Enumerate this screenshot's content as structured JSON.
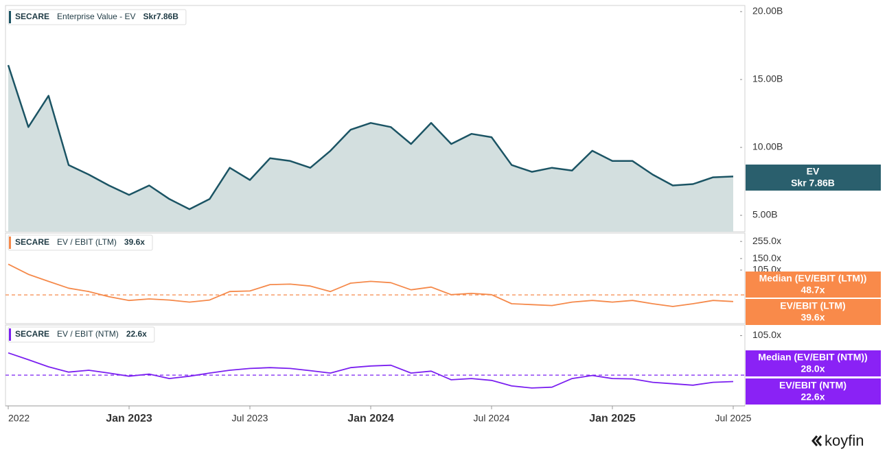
{
  "chart_data": {
    "type": "line",
    "x": [
      "2022-07",
      "2022-08",
      "2022-09",
      "2022-10",
      "2022-11",
      "2022-12",
      "2023-01",
      "2023-02",
      "2023-03",
      "2023-04",
      "2023-05",
      "2023-06",
      "2023-07",
      "2023-08",
      "2023-09",
      "2023-10",
      "2023-11",
      "2023-12",
      "2024-01",
      "2024-02",
      "2024-03",
      "2024-04",
      "2024-05",
      "2024-06",
      "2024-07",
      "2024-08",
      "2024-09",
      "2024-10",
      "2024-11",
      "2024-12",
      "2025-01",
      "2025-02",
      "2025-03",
      "2025-04",
      "2025-05",
      "2025-06",
      "2025-07"
    ],
    "xlim": [
      "2022-07",
      "2025-07"
    ],
    "xticks": [
      {
        "value": "2022-07",
        "label": "2022"
      },
      {
        "value": "2023-01",
        "label": "Jan 2023"
      },
      {
        "value": "2023-07",
        "label": "Jul 2023"
      },
      {
        "value": "2024-01",
        "label": "Jan 2024"
      },
      {
        "value": "2024-07",
        "label": "Jul 2024"
      },
      {
        "value": "2025-01",
        "label": "Jan 2025"
      },
      {
        "value": "2025-07",
        "label": "Jul 2025"
      }
    ],
    "panels": [
      {
        "type": "area",
        "ticker": "SECARE",
        "name": "Enterprise Value - EV",
        "legend_value": "Skr7.86B",
        "color": "#1b5464",
        "fill": "#d3dfdf",
        "badge_color": "#2a5f6d",
        "values": [
          16.06,
          11.5,
          13.8,
          8.7,
          8.0,
          7.2,
          6.5,
          7.2,
          6.2,
          5.45,
          6.2,
          8.5,
          7.6,
          9.2,
          9.0,
          8.5,
          9.75,
          11.3,
          11.8,
          11.5,
          10.25,
          11.8,
          10.25,
          11.0,
          10.75,
          8.7,
          8.2,
          8.5,
          8.3,
          9.75,
          9.0,
          9.0,
          8.0,
          7.2,
          7.3,
          7.8,
          7.86
        ],
        "ylim": [
          3.79,
          20.45
        ],
        "yticks": [
          {
            "value": 5,
            "label": "5.00B"
          },
          {
            "value": 10,
            "label": "10.00B"
          },
          {
            "value": 15,
            "label": "15.00B"
          },
          {
            "value": 20,
            "label": "20.00B"
          }
        ],
        "badges": [
          {
            "title": "EV",
            "label": "Skr 7.86B"
          }
        ]
      },
      {
        "type": "line",
        "ticker": "SECARE",
        "name": "EV / EBIT (LTM)",
        "legend_value": "39.6x",
        "color": "#f5894a",
        "badge_color": "#f98a4a",
        "log_scale": true,
        "median": 48.7,
        "values": [
          126,
          92,
          74,
          60,
          54,
          46,
          41,
          43,
          41.5,
          39,
          41.5,
          54,
          55,
          67,
          68,
          64,
          54,
          70,
          74,
          71,
          57,
          62,
          49,
          51,
          49,
          37,
          36,
          35,
          39,
          41,
          39,
          41,
          37,
          34,
          37,
          41,
          39.6
        ],
        "ylim": [
          20,
          330
        ],
        "yticks": [
          {
            "value": 105,
            "label": "105.0x"
          },
          {
            "value": 150,
            "label": "150.0x"
          },
          {
            "value": 255,
            "label": "255.0x"
          }
        ],
        "badges": [
          {
            "title": "Median (EV/EBIT (LTM))",
            "label": "48.7x"
          },
          {
            "title": "EV/EBIT (LTM)",
            "label": "39.6x"
          }
        ]
      },
      {
        "type": "line",
        "ticker": "SECARE",
        "name": "EV / EBIT (NTM)",
        "legend_value": "22.6x",
        "color": "#7a1ff0",
        "badge_color": "#8a22f5",
        "log_scale": true,
        "median": 28.0,
        "values": [
          59,
          47,
          37,
          31,
          33,
          30,
          27,
          29,
          25,
          27,
          30,
          33,
          35,
          36,
          35,
          32.5,
          30,
          36,
          38,
          39,
          30,
          32,
          24,
          25,
          23.5,
          19.5,
          18.2,
          18.7,
          25,
          27.7,
          25,
          24.7,
          22,
          21,
          20,
          22,
          22.6
        ],
        "ylim": [
          10,
          150
        ],
        "yticks": [
          {
            "value": 105,
            "label": "105.0x"
          }
        ],
        "badges": [
          {
            "title": "Median (EV/EBIT (NTM))",
            "label": "28.0x"
          },
          {
            "title": "EV/EBIT (NTM)",
            "label": "22.6x"
          }
        ]
      }
    ]
  },
  "logo": "koyfin"
}
